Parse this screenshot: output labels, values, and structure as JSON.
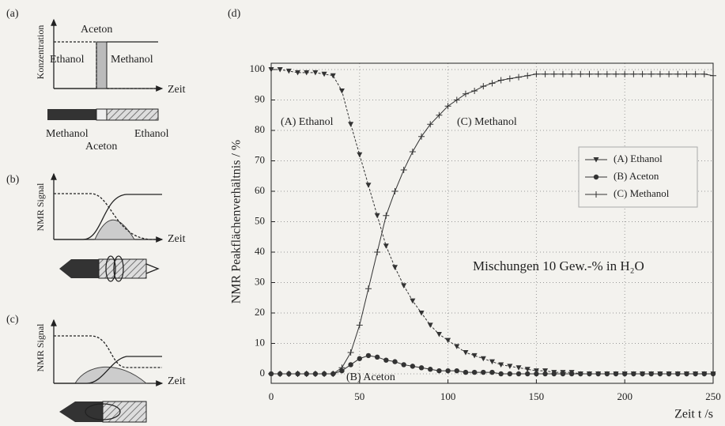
{
  "panels": [
    {
      "label": "(a)",
      "y_label": "Konzentration",
      "x_label": "Zeit",
      "texts": [
        "Aceton",
        "Ethanol",
        "Methanol",
        "Methanol",
        "Aceton",
        "Ethanol"
      ]
    },
    {
      "label": "(b)",
      "y_label": "NMR Signal",
      "x_label": "Zeit"
    },
    {
      "label": "(c)",
      "y_label": "NMR Signal",
      "x_label": "Zeit"
    }
  ],
  "chart_data": {
    "type": "line",
    "panel_label": "(d)",
    "x_label": "Zeit t /s",
    "y_label": "NMR Peakflächenverhältnis / %",
    "x": [
      0,
      5,
      10,
      15,
      20,
      25,
      30,
      35,
      40,
      45,
      50,
      55,
      60,
      65,
      70,
      75,
      80,
      85,
      90,
      95,
      100,
      105,
      110,
      115,
      120,
      125,
      130,
      135,
      140,
      145,
      150,
      155,
      160,
      165,
      170,
      175,
      180,
      185,
      190,
      195,
      200,
      205,
      210,
      215,
      220,
      225,
      230,
      235,
      240,
      245,
      250
    ],
    "series": [
      {
        "name": "(A) Ethanol",
        "color": "#333333",
        "marker": "triangle-down",
        "values": [
          100,
          100,
          99.5,
          99,
          99,
          99,
          98.5,
          98,
          93,
          82,
          72,
          62,
          52,
          42,
          35,
          29,
          24,
          20,
          16,
          13,
          11,
          9,
          7,
          6,
          5,
          4,
          3,
          2.5,
          2,
          1.5,
          1,
          1,
          0.5,
          0.5,
          0.5,
          0,
          0,
          0,
          0,
          0,
          0,
          0,
          0,
          0,
          0,
          0,
          0,
          0,
          0,
          0,
          0
        ]
      },
      {
        "name": "(B) Aceton",
        "color": "#333333",
        "marker": "circle",
        "values": [
          0,
          0,
          0,
          0,
          0,
          0,
          0,
          0,
          1,
          3,
          5,
          6,
          5.5,
          4.5,
          4,
          3,
          2.5,
          2,
          1.5,
          1,
          1,
          1,
          0.5,
          0.5,
          0.5,
          0.5,
          0,
          0,
          0,
          0,
          0,
          0,
          0,
          0,
          0,
          0,
          0,
          0,
          0,
          0,
          0,
          0,
          0,
          0,
          0,
          0,
          0,
          0,
          0,
          0,
          0
        ]
      },
      {
        "name": "(C) Methanol",
        "color": "#333333",
        "marker": "plus",
        "values": [
          0,
          0,
          0,
          0,
          0,
          0,
          0,
          0,
          2,
          7,
          16,
          28,
          40,
          52,
          60,
          67,
          73,
          78,
          82,
          85,
          88,
          90,
          92,
          93,
          94.5,
          95.5,
          96.5,
          97,
          97.5,
          98,
          98.5,
          98.5,
          98.5,
          98.5,
          98.5,
          98.5,
          98.5,
          98.5,
          98.5,
          98.5,
          98.5,
          98.5,
          98.5,
          98.5,
          98.5,
          98.5,
          98.5,
          98.5,
          98.5,
          98.5,
          98
        ]
      }
    ],
    "xlim": [
      0,
      250
    ],
    "xticks": [
      0,
      50,
      100,
      150,
      200,
      250
    ],
    "ylim": [
      0,
      100
    ],
    "yticks": [
      0,
      10,
      20,
      30,
      40,
      50,
      60,
      70,
      80,
      90,
      100
    ],
    "grid": true,
    "legend": "upper right",
    "annotations": [
      "(A) Ethanol",
      "(C) Methanol",
      "(B) Aceton",
      "Mischungen 10 Gew.-% in H₂O"
    ]
  }
}
